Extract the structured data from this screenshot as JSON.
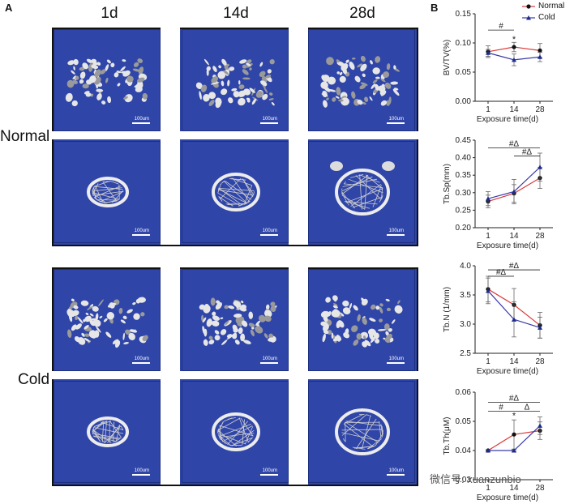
{
  "panel_a": {
    "letter": "A",
    "columns": [
      "1d",
      "14d",
      "28d"
    ],
    "row_labels": [
      "Normal",
      "Cold"
    ],
    "scale_bar": "100um"
  },
  "panel_b": {
    "letter": "B",
    "legend": [
      {
        "name": "Normal",
        "color": "#d93a3a",
        "marker": "circle"
      },
      {
        "name": "Cold",
        "color": "#3a3aa8",
        "marker": "triangle"
      }
    ]
  },
  "colors": {
    "normal": "#d93a3a",
    "cold": "#3a3aa8",
    "tile_bg": "#2f45a8",
    "bone": "#e8e8e8"
  },
  "chart_data": [
    {
      "type": "line",
      "ylabel": "BV/TV(%)",
      "xlabel": "Exposure time(d)",
      "x": [
        1,
        14,
        28
      ],
      "yticks": [
        "0.00",
        "0.05",
        "0.10",
        "0.15"
      ],
      "ylim": [
        0,
        0.15
      ],
      "series": [
        {
          "name": "Normal",
          "values": [
            0.085,
            0.093,
            0.087
          ],
          "err": [
            0.01,
            0.008,
            0.012
          ]
        },
        {
          "name": "Cold",
          "values": [
            0.083,
            0.071,
            0.076
          ],
          "err": [
            0.006,
            0.01,
            0.008
          ]
        }
      ],
      "annotations": [
        {
          "text": "#",
          "from": 1,
          "to": 14,
          "y": 0.122
        },
        {
          "text": "*",
          "at": 14,
          "y": 0.104
        }
      ]
    },
    {
      "type": "line",
      "ylabel": "Tb.Sp(mm)",
      "xlabel": "Exposure time(d)",
      "x": [
        1,
        14,
        28
      ],
      "yticks": [
        "0.20",
        "0.25",
        "0.30",
        "0.35",
        "0.40",
        "0.45"
      ],
      "ylim": [
        0.2,
        0.45
      ],
      "series": [
        {
          "name": "Normal",
          "values": [
            0.275,
            0.298,
            0.342
          ],
          "err": [
            0.018,
            0.025,
            0.03
          ]
        },
        {
          "name": "Cold",
          "values": [
            0.283,
            0.303,
            0.373
          ],
          "err": [
            0.02,
            0.035,
            0.04
          ]
        }
      ],
      "annotations": [
        {
          "text": "#Δ",
          "from": 1,
          "to": 28,
          "y": 0.428
        },
        {
          "text": "#Δ",
          "from": 14,
          "to": 28,
          "y": 0.405
        }
      ]
    },
    {
      "type": "line",
      "ylabel": "Tb.N (1/mm)",
      "xlabel": "Exposure time(d)",
      "x": [
        1,
        14,
        28
      ],
      "yticks": [
        "2.5",
        "3.0",
        "3.5",
        "4.0"
      ],
      "ylim": [
        2.5,
        4.0
      ],
      "series": [
        {
          "name": "Normal",
          "values": [
            3.6,
            3.33,
            2.98
          ],
          "err": [
            0.22,
            0.28,
            0.22
          ]
        },
        {
          "name": "Cold",
          "values": [
            3.57,
            3.08,
            2.94
          ],
          "err": [
            0.22,
            0.3,
            0.18
          ]
        }
      ],
      "annotations": [
        {
          "text": "#Δ",
          "from": 1,
          "to": 14,
          "y": 3.82
        },
        {
          "text": "#Δ",
          "from": 1,
          "to": 28,
          "y": 3.93
        }
      ]
    },
    {
      "type": "line",
      "ylabel": "Tb.Th(μM)",
      "xlabel": "Exposure time(d)",
      "x": [
        1,
        14,
        28
      ],
      "yticks": [
        "0.03",
        "0.04",
        "0.05",
        "0.06"
      ],
      "ylim": [
        0.03,
        0.06
      ],
      "series": [
        {
          "name": "Normal",
          "values": [
            0.04,
            0.0455,
            0.0468
          ],
          "err": [
            0.0003,
            0.005,
            0.003
          ]
        },
        {
          "name": "Cold",
          "values": [
            0.04,
            0.04,
            0.0485
          ],
          "err": [
            0.0003,
            0.0003,
            0.003
          ]
        }
      ],
      "annotations": [
        {
          "text": "#Δ",
          "from": 1,
          "to": 28,
          "y": 0.0565
        },
        {
          "text": "#",
          "from": 1,
          "to": 14,
          "y": 0.0535
        },
        {
          "text": "Δ",
          "from": 14,
          "to": 28,
          "y": 0.0535
        },
        {
          "text": "*",
          "at": 14,
          "y": 0.0515
        }
      ]
    }
  ],
  "watermark": "微信号: xuanzunbio"
}
